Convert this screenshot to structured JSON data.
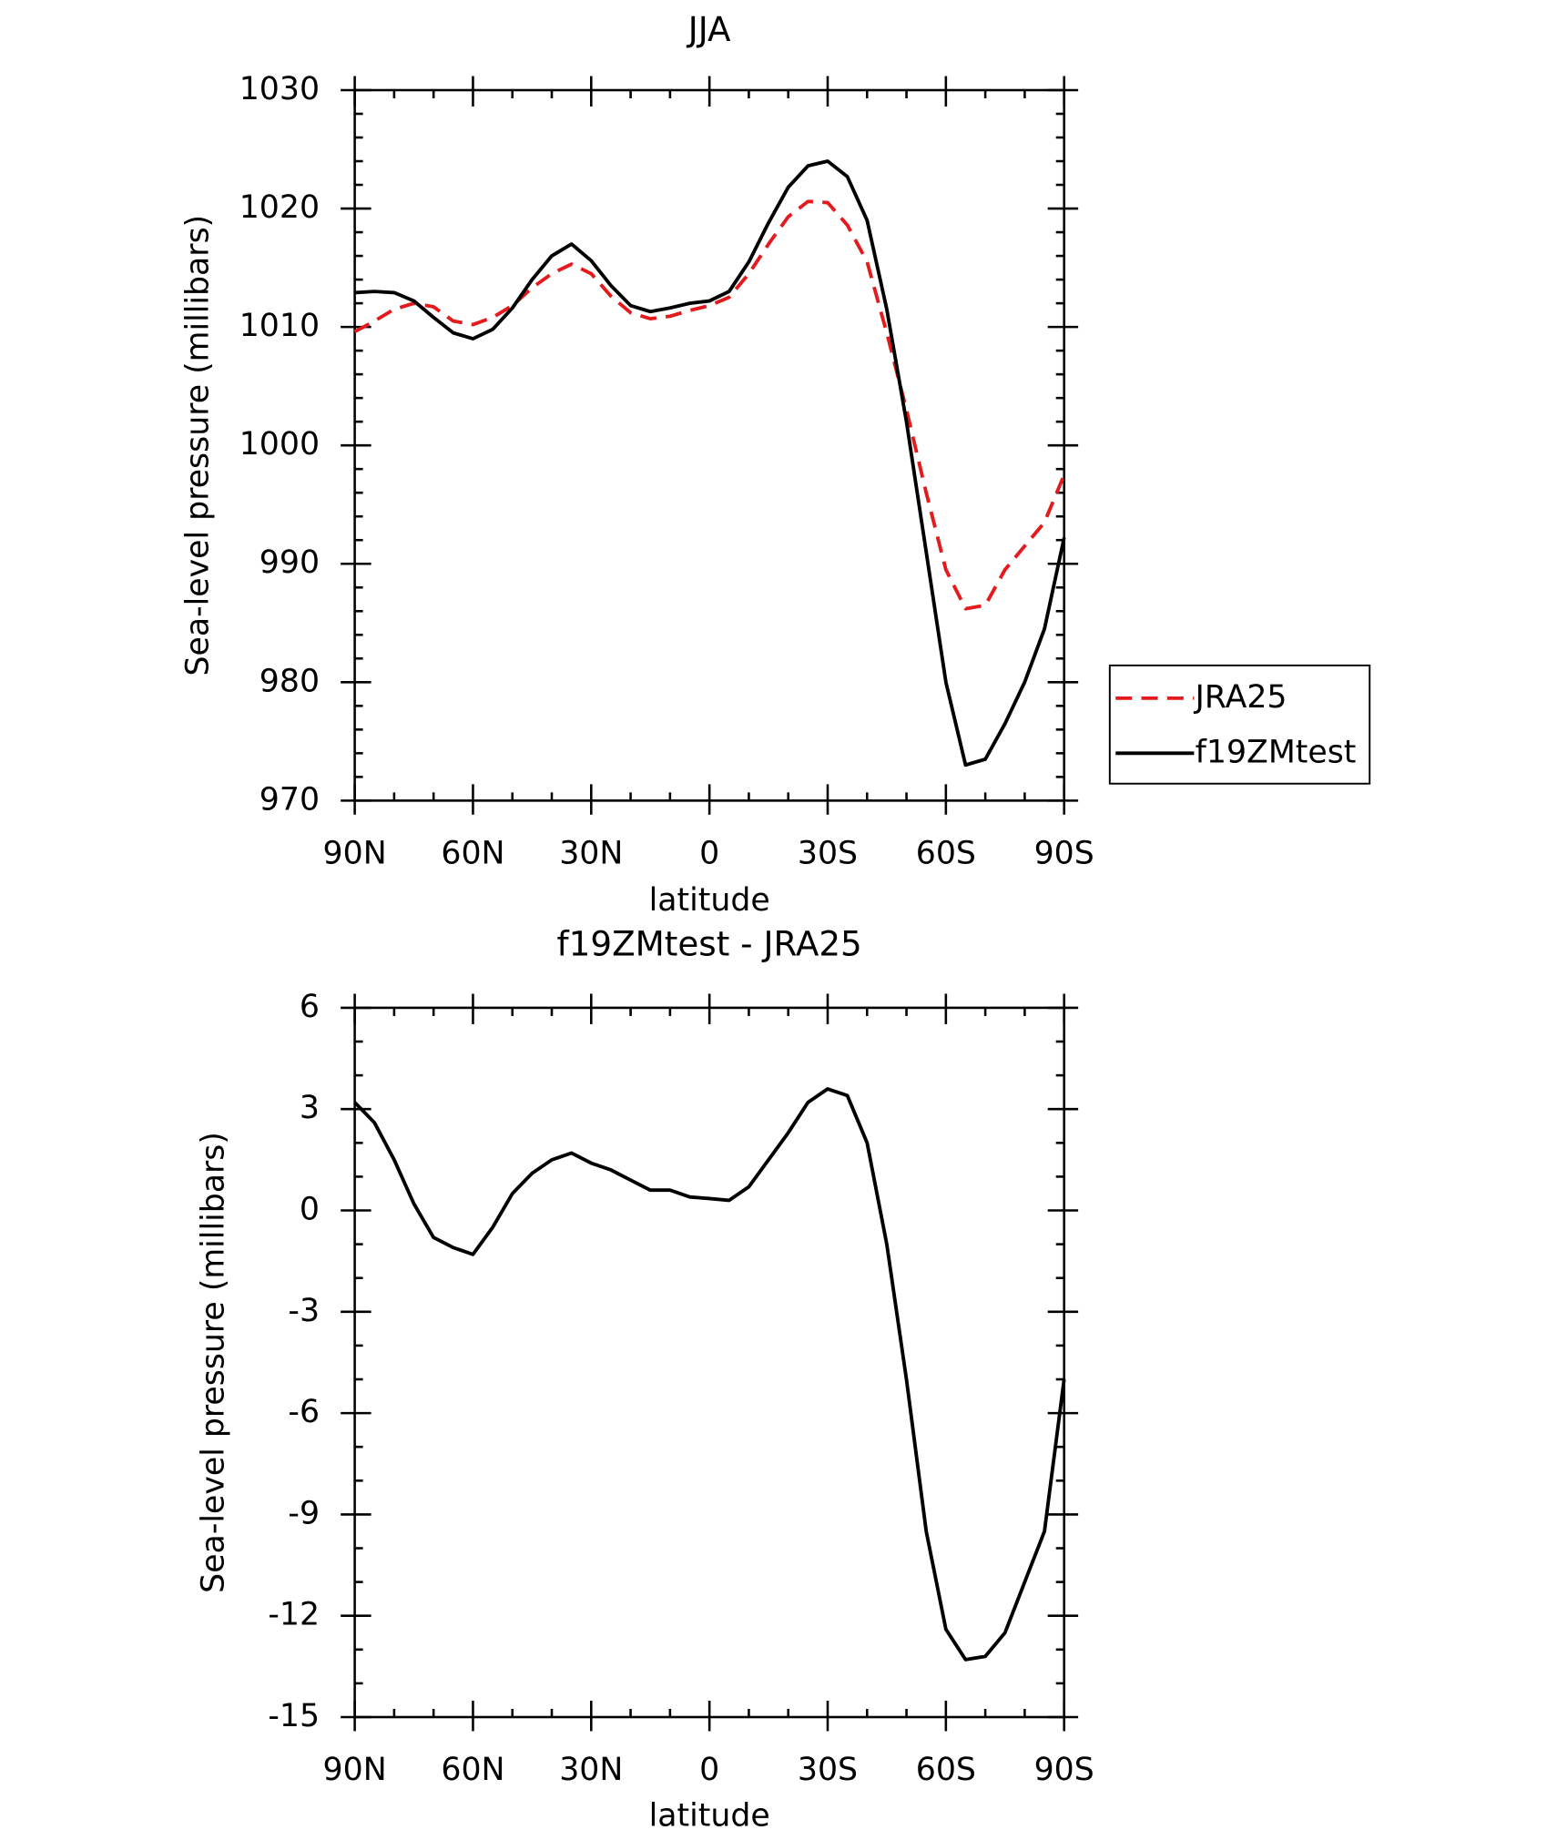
{
  "chart_data": [
    {
      "type": "line",
      "title": "JJA",
      "xlabel": "latitude",
      "ylabel": "Sea-level pressure (millibars)",
      "x": [
        90,
        85,
        80,
        75,
        70,
        65,
        60,
        55,
        50,
        45,
        40,
        35,
        30,
        25,
        20,
        15,
        10,
        5,
        0,
        -5,
        -10,
        -15,
        -20,
        -25,
        -30,
        -35,
        -40,
        -45,
        -50,
        -55,
        -60,
        -65,
        -70,
        -75,
        -80,
        -85,
        -90
      ],
      "series": [
        {
          "name": "JRA25",
          "color": "#e41a1c",
          "linestyle": "dashed",
          "values": [
            1009.6,
            1010.5,
            1011.5,
            1012.0,
            1011.7,
            1010.5,
            1010.2,
            1010.8,
            1011.8,
            1013.3,
            1014.5,
            1015.3,
            1014.5,
            1012.6,
            1011.2,
            1010.7,
            1010.9,
            1011.4,
            1011.8,
            1012.5,
            1014.5,
            1017.0,
            1019.3,
            1020.6,
            1020.5,
            1018.6,
            1015.5,
            1009.5,
            1003.0,
            996.0,
            989.5,
            986.2,
            986.5,
            989.5,
            991.5,
            993.5,
            997.5
          ]
        },
        {
          "name": "f19ZMtest",
          "color": "#000000",
          "linestyle": "solid",
          "values": [
            1012.9,
            1013.0,
            1012.9,
            1012.2,
            1010.8,
            1009.5,
            1009.0,
            1009.8,
            1011.6,
            1014.0,
            1016.0,
            1017.0,
            1015.6,
            1013.5,
            1011.8,
            1011.3,
            1011.6,
            1012.0,
            1012.2,
            1013.0,
            1015.5,
            1018.8,
            1021.8,
            1023.6,
            1024.0,
            1022.7,
            1019.0,
            1011.5,
            1002.0,
            991.0,
            980.0,
            973.0,
            973.5,
            976.5,
            980.0,
            984.5,
            992.2
          ]
        }
      ],
      "xlim": [
        90,
        -90
      ],
      "xticks": [
        {
          "value": 90,
          "label": "90N"
        },
        {
          "value": 60,
          "label": "60N"
        },
        {
          "value": 30,
          "label": "30N"
        },
        0,
        {
          "value": -30,
          "label": "30S"
        },
        {
          "value": -60,
          "label": "60S"
        },
        {
          "value": -90,
          "label": "90S"
        }
      ],
      "ylim": [
        970,
        1030
      ],
      "yticks": [
        970,
        980,
        990,
        1000,
        1010,
        1020,
        1030
      ],
      "legend": "right"
    },
    {
      "type": "line",
      "title": "f19ZMtest - JRA25",
      "xlabel": "latitude",
      "ylabel": "Sea-level pressure (millibars)",
      "x": [
        90,
        85,
        80,
        75,
        70,
        65,
        60,
        55,
        50,
        45,
        40,
        35,
        30,
        25,
        20,
        15,
        10,
        5,
        0,
        -5,
        -10,
        -15,
        -20,
        -25,
        -30,
        -35,
        -40,
        -45,
        -50,
        -55,
        -60,
        -65,
        -70,
        -75,
        -80,
        -85,
        -90
      ],
      "series": [
        {
          "color": "#000000",
          "linestyle": "solid",
          "values": [
            3.2,
            2.6,
            1.5,
            0.2,
            -0.8,
            -1.1,
            -1.3,
            -0.5,
            0.5,
            1.1,
            1.5,
            1.7,
            1.4,
            1.2,
            0.9,
            0.6,
            0.6,
            0.4,
            0.35,
            0.3,
            0.7,
            1.5,
            2.3,
            3.2,
            3.6,
            3.4,
            2.0,
            -1.0,
            -5.0,
            -9.5,
            -12.4,
            -13.3,
            -13.2,
            -12.5,
            -11.0,
            -9.5,
            -5.0
          ]
        }
      ],
      "xlim": [
        90,
        -90
      ],
      "xticks": [
        {
          "value": 90,
          "label": "90N"
        },
        {
          "value": 60,
          "label": "60N"
        },
        {
          "value": 30,
          "label": "30N"
        },
        0,
        {
          "value": -30,
          "label": "30S"
        },
        {
          "value": -60,
          "label": "60S"
        },
        {
          "value": -90,
          "label": "90S"
        }
      ],
      "ylim": [
        -15,
        6
      ],
      "yticks": [
        -15,
        -12,
        -9,
        -6,
        -3,
        0,
        3,
        6
      ]
    }
  ]
}
